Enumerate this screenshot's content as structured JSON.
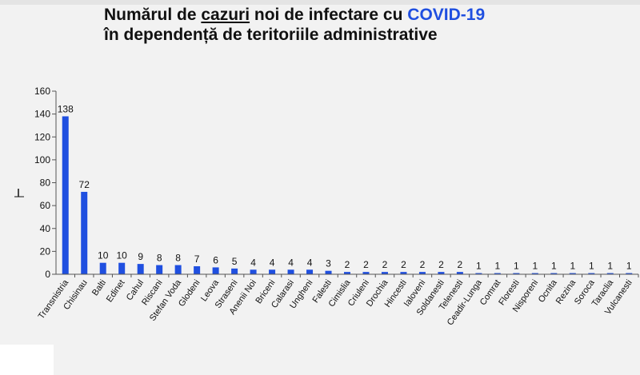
{
  "title": {
    "part1": "Numărul de ",
    "part2": "cazuri",
    "part3": " noi de infectare cu ",
    "highlight": "COVID-19",
    "line2": "în dependență de teritoriile administrative"
  },
  "colors": {
    "bar": "#1f4fe0",
    "title_highlight": "#1f4fe0",
    "axis": "#555555"
  },
  "chart_data": {
    "type": "bar",
    "title": "Numărul de cazuri noi de infectare cu COVID-19 în dependență de teritoriile administrative",
    "xlabel": "",
    "ylabel": "",
    "ylim": [
      0,
      160
    ],
    "yticks": [
      0,
      20,
      40,
      60,
      80,
      100,
      120,
      140,
      160
    ],
    "grid": false,
    "legend": "none",
    "categories": [
      "Transnistria",
      "Chisinau",
      "Balti",
      "Edinet",
      "Cahul",
      "Riscani",
      "Stefan Voda",
      "Glodeni",
      "Leova",
      "Straseni",
      "Anenii Noi",
      "Briceni",
      "Calarasi",
      "Ungheni",
      "Falesti",
      "Cimislia",
      "Criuleni",
      "Drochia",
      "Hincesti",
      "Ialoveni",
      "Soldanesti",
      "Telenesti",
      "Ceadir-Lunga",
      "Comrat",
      "Floresti",
      "Nisporeni",
      "Ocnita",
      "Rezina",
      "Soroca",
      "Taraclia",
      "Vulcanesti"
    ],
    "values": [
      138,
      72,
      10,
      10,
      9,
      8,
      8,
      7,
      6,
      5,
      4,
      4,
      4,
      4,
      3,
      2,
      2,
      2,
      2,
      2,
      2,
      2,
      1,
      1,
      1,
      1,
      1,
      1,
      1,
      1,
      1
    ]
  }
}
